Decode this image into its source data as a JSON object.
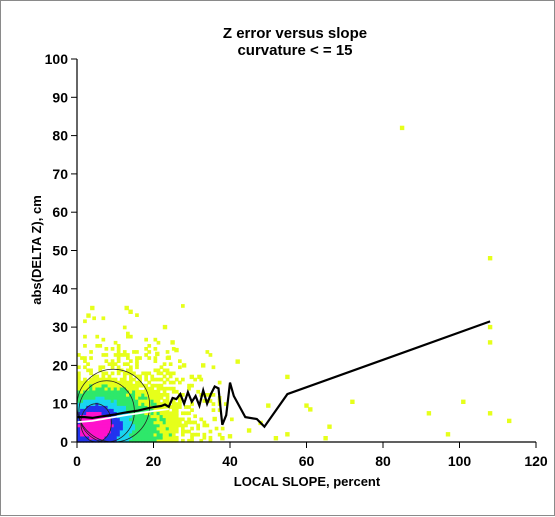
{
  "chart_data": {
    "type": "heatmap",
    "title": "Z error versus slope",
    "subtitle": "curvature < = 15",
    "xlabel": "LOCAL SLOPE, percent",
    "ylabel": "abs(DELTA Z), cm",
    "xlim": [
      0,
      120
    ],
    "ylim": [
      0,
      100
    ],
    "xticks": [
      0,
      20,
      40,
      60,
      80,
      100,
      120
    ],
    "yticks": [
      0,
      10,
      20,
      30,
      40,
      50,
      60,
      70,
      80,
      90,
      100
    ],
    "grid": false,
    "legend": "none",
    "density_core": {
      "x": 4,
      "y": 4
    },
    "density_contour_extent": {
      "x": [
        [
          1,
          9
        ],
        [
          0.5,
          15
        ],
        [
          0,
          19
        ]
      ],
      "y": [
        [
          0,
          10
        ],
        [
          0,
          16
        ],
        [
          0,
          19
        ]
      ]
    },
    "colors": {
      "low": "#e6ff1a",
      "mid": "#2ee86a",
      "mid_high": "#19d5f0",
      "high": "#2233ee",
      "peak": "#ff11cc",
      "contour": "#222222",
      "mean_line": "#000000",
      "median_line": "#ffffff"
    },
    "series": [
      {
        "values": [
          [
            0,
            6.5
          ],
          [
            2,
            6.5
          ],
          [
            4,
            6.3
          ],
          [
            6,
            6.6
          ],
          [
            8,
            6.9
          ],
          [
            10,
            7.2
          ],
          [
            12,
            7.6
          ],
          [
            14,
            7.9
          ],
          [
            16,
            8.2
          ],
          [
            18,
            8.7
          ],
          [
            20,
            9.1
          ],
          [
            22,
            9.4
          ],
          [
            23,
            9.8
          ],
          [
            24,
            9.2
          ],
          [
            25,
            11.5
          ],
          [
            26,
            11.2
          ],
          [
            27,
            12.5
          ],
          [
            28,
            10
          ],
          [
            29,
            13
          ],
          [
            30,
            10.5
          ],
          [
            31,
            12
          ],
          [
            32,
            9.5
          ],
          [
            33,
            13.5
          ],
          [
            34,
            10
          ],
          [
            35,
            12.5
          ],
          [
            36,
            14.5
          ],
          [
            37,
            14
          ],
          [
            38,
            4.5
          ],
          [
            39,
            7
          ],
          [
            40,
            15.5
          ],
          [
            41,
            12
          ],
          [
            44,
            6.5
          ],
          [
            47,
            6
          ],
          [
            49,
            4
          ],
          [
            55,
            12.5
          ],
          [
            108,
            31.5
          ]
        ]
      },
      {
        "values": [
          [
            0,
            5.2
          ],
          [
            4,
            5.5
          ],
          [
            8,
            6.2
          ],
          [
            12,
            6.9
          ],
          [
            16,
            7.5
          ],
          [
            20,
            8.1
          ],
          [
            24,
            8.6
          ]
        ]
      }
    ],
    "outliers": [
      [
        85,
        82
      ],
      [
        108,
        48
      ],
      [
        108,
        30
      ],
      [
        108,
        26
      ],
      [
        108,
        7.5
      ],
      [
        113,
        5.5
      ],
      [
        101,
        10.5
      ],
      [
        97,
        2
      ],
      [
        92,
        7.5
      ],
      [
        72,
        10.5
      ],
      [
        66,
        4
      ],
      [
        65,
        1
      ],
      [
        61,
        8.5
      ],
      [
        60,
        9.5
      ],
      [
        55,
        17
      ],
      [
        55,
        2
      ],
      [
        52,
        1
      ],
      [
        50,
        9.5
      ],
      [
        48,
        5
      ],
      [
        45,
        3
      ],
      [
        42,
        21
      ],
      [
        40,
        1.5
      ],
      [
        38,
        1
      ],
      [
        36,
        6
      ],
      [
        33,
        20
      ],
      [
        32,
        17
      ],
      [
        30,
        17
      ],
      [
        28,
        20
      ],
      [
        26,
        24
      ],
      [
        24,
        22
      ],
      [
        21,
        23
      ],
      [
        14,
        34
      ],
      [
        13,
        35
      ],
      [
        4,
        35
      ],
      [
        3,
        33
      ],
      [
        23,
        30
      ],
      [
        25,
        26
      ]
    ]
  }
}
